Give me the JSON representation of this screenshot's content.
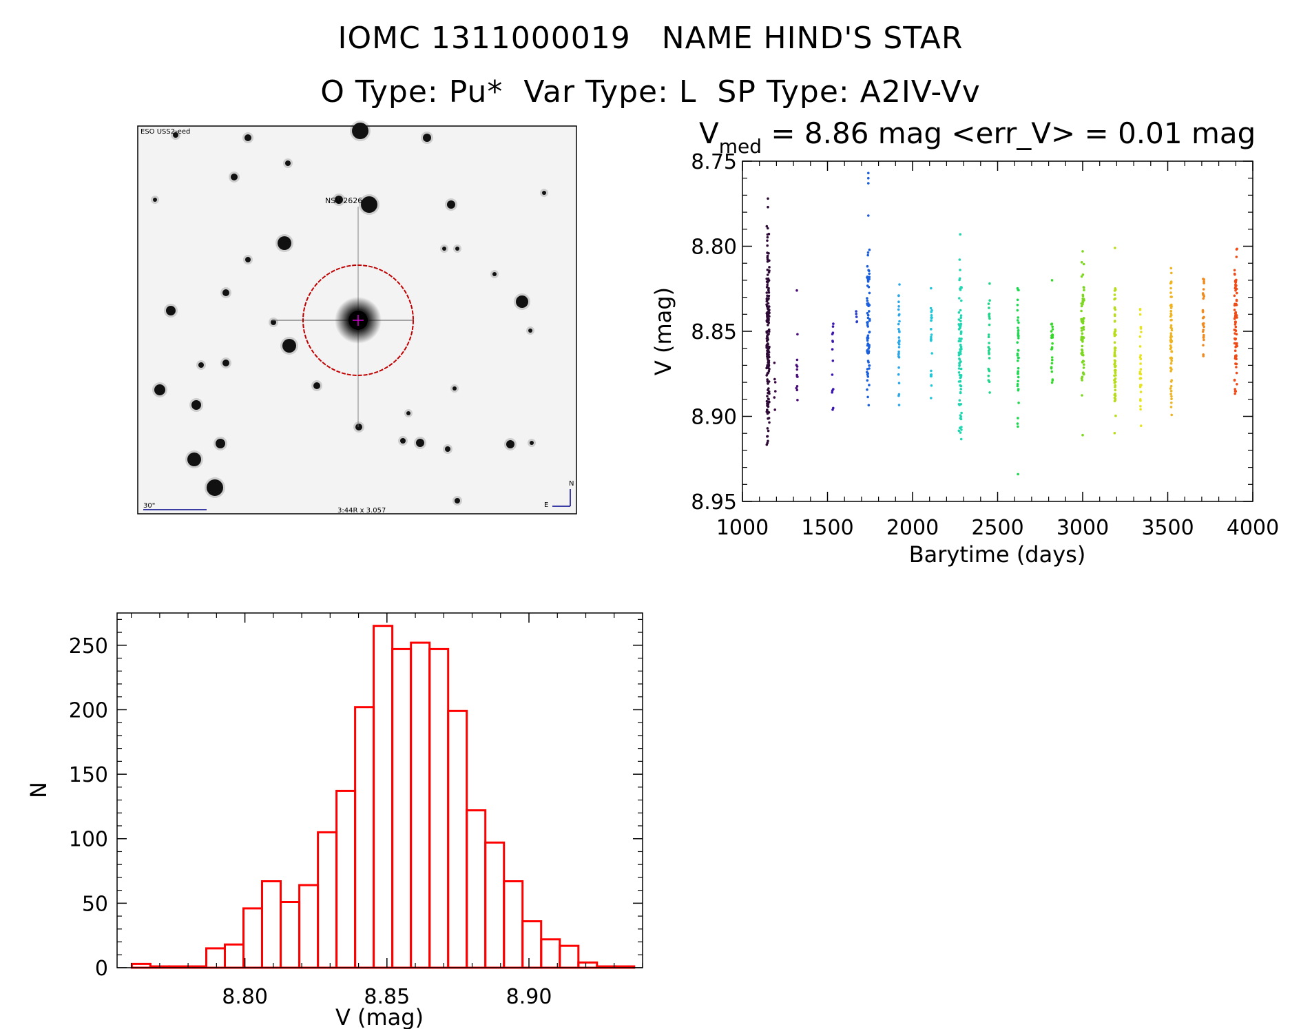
{
  "header": {
    "line1": "IOMC 1311000019   NAME HIND'S STAR",
    "line2": "O Type: Pu*  Var Type: L  SP Type: A2IV-Vv"
  },
  "finder_image": {
    "survey_label": "ESO USS2-eed",
    "source_label": "NSV 2626",
    "scale_label": "30\"",
    "center_label": "3:44R x 3.057",
    "compass_north": "N",
    "compass_east": "E",
    "colors": {
      "circle": "#c00000",
      "labels": "#00008b"
    }
  },
  "chart_data": [
    {
      "type": "scatter",
      "title_main": "V",
      "title_sub": "med",
      "title_rest": " = 8.86 mag <err_V> = 0.01 mag",
      "xlabel": "Barytime (days)",
      "ylabel": "V (mag)",
      "xlim": [
        1000,
        4000
      ],
      "ylim": [
        8.75,
        8.95
      ],
      "y_inverted": true,
      "xticks": [
        1000,
        1500,
        2000,
        2500,
        3000,
        3500,
        4000
      ],
      "yticks": [
        "8.75",
        "8.80",
        "8.85",
        "8.90",
        "8.95"
      ],
      "groups": [
        {
          "x": 1150,
          "ymin": 8.785,
          "ymax": 8.925,
          "n": 180,
          "color": "#2d0a35",
          "outliers": [
            8.772,
            8.777
          ]
        },
        {
          "x": 1190,
          "ymin": 8.855,
          "ymax": 8.9,
          "n": 6,
          "color": "#3b0a45",
          "outliers": []
        },
        {
          "x": 1320,
          "ymin": 8.84,
          "ymax": 8.905,
          "n": 12,
          "color": "#4b0f7a",
          "outliers": [
            8.826
          ]
        },
        {
          "x": 1530,
          "ymin": 8.83,
          "ymax": 8.9,
          "n": 14,
          "color": "#3a15b0",
          "outliers": []
        },
        {
          "x": 1670,
          "ymin": 8.835,
          "ymax": 8.85,
          "n": 5,
          "color": "#2a3fc8",
          "outliers": []
        },
        {
          "x": 1740,
          "ymin": 8.79,
          "ymax": 8.905,
          "n": 70,
          "color": "#1a5fdc",
          "outliers": [
            8.757,
            8.76,
            8.763,
            8.782
          ]
        },
        {
          "x": 1920,
          "ymin": 8.81,
          "ymax": 8.905,
          "n": 30,
          "color": "#2aa7e8",
          "outliers": []
        },
        {
          "x": 2110,
          "ymin": 8.818,
          "ymax": 8.89,
          "n": 25,
          "color": "#22c7d8",
          "outliers": []
        },
        {
          "x": 2280,
          "ymin": 8.8,
          "ymax": 8.92,
          "n": 80,
          "color": "#1fd6b0",
          "outliers": [
            8.793
          ]
        },
        {
          "x": 2450,
          "ymin": 8.82,
          "ymax": 8.895,
          "n": 25,
          "color": "#1ed68a",
          "outliers": []
        },
        {
          "x": 2620,
          "ymin": 8.81,
          "ymax": 8.915,
          "n": 40,
          "color": "#1ed84f",
          "outliers": [
            8.934
          ]
        },
        {
          "x": 2820,
          "ymin": 8.83,
          "ymax": 8.888,
          "n": 25,
          "color": "#34d82a",
          "outliers": [
            8.82
          ]
        },
        {
          "x": 3000,
          "ymin": 8.805,
          "ymax": 8.895,
          "n": 70,
          "color": "#7bd81e",
          "outliers": [
            8.803,
            8.911
          ]
        },
        {
          "x": 3190,
          "ymin": 8.81,
          "ymax": 8.912,
          "n": 60,
          "color": "#b6dc1a",
          "outliers": [
            8.801
          ]
        },
        {
          "x": 3340,
          "ymin": 8.835,
          "ymax": 8.912,
          "n": 30,
          "color": "#e6e41e",
          "outliers": []
        },
        {
          "x": 3520,
          "ymin": 8.805,
          "ymax": 8.91,
          "n": 60,
          "color": "#f0b41e",
          "outliers": []
        },
        {
          "x": 3710,
          "ymin": 8.81,
          "ymax": 8.87,
          "n": 30,
          "color": "#f08a1e",
          "outliers": []
        },
        {
          "x": 3900,
          "ymin": 8.795,
          "ymax": 8.895,
          "n": 80,
          "color": "#f04a16",
          "outliers": []
        }
      ]
    },
    {
      "type": "bar",
      "subtype": "histogram",
      "xlabel": "V (mag)",
      "ylabel": "N",
      "xlim": [
        8.755,
        8.94
      ],
      "ylim": [
        0,
        275
      ],
      "xticks": [
        "8.80",
        "8.85",
        "8.90"
      ],
      "yticks": [
        "0",
        "50",
        "100",
        "150",
        "200",
        "250"
      ],
      "bin_start": 8.7602,
      "bin_width": 0.00655,
      "values": [
        3,
        1,
        1,
        1,
        15,
        18,
        46,
        67,
        51,
        64,
        105,
        137,
        202,
        265,
        247,
        252,
        247,
        199,
        122,
        97,
        67,
        36,
        22,
        17,
        4,
        1,
        1,
        0
      ],
      "color": "#ff0000"
    }
  ]
}
